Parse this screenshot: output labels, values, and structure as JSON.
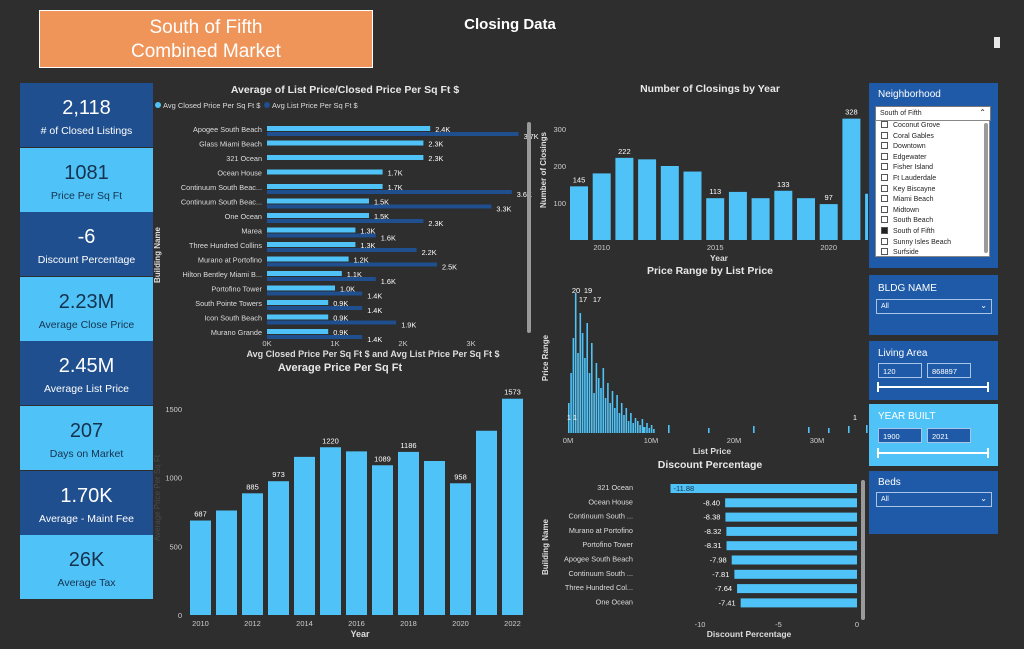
{
  "header": {
    "title_line1": "South of Fifth",
    "title_line2": "Combined Market",
    "page_title": "Closing Data"
  },
  "kpis": [
    {
      "value": "2,118",
      "label": "# of Closed Listings"
    },
    {
      "value": "1081",
      "label": "Price Per Sq Ft"
    },
    {
      "value": "-6",
      "label": "Discount Percentage"
    },
    {
      "value": "2.23M",
      "label": "Average Close Price"
    },
    {
      "value": "2.45M",
      "label": "Average List Price"
    },
    {
      "value": "207",
      "label": "Days on Market"
    },
    {
      "value": "1.70K",
      "label": "Average - Maint Fee"
    },
    {
      "value": "26K",
      "label": "Average Tax"
    }
  ],
  "colors": {
    "closed": "#4fc3f7",
    "list": "#1f4f8f",
    "bg": "#2e2e2e",
    "slicer": "#1e5aa8"
  },
  "chart_data": [
    {
      "type": "bar",
      "orientation": "horizontal",
      "title": "Average of List Price/Closed Price Per Sq Ft $",
      "xlabel": "Avg Closed Price Per Sq Ft $ and Avg List Price Per Sq Ft $",
      "ylabel": "Building Name",
      "categories": [
        "Apogee South Beach",
        "Glass Miami Beach",
        "321 Ocean",
        "Ocean House",
        "Continuum South Beac...",
        "Continuum South Beac...",
        "One Ocean",
        "Marea",
        "Three Hundred Collins",
        "Murano at Portofino",
        "Hilton Bentley Miami B...",
        "Portofino Tower",
        "South Pointe Towers",
        "Icon South Beach",
        "Murano Grande"
      ],
      "series": [
        {
          "name": "Avg Closed Price Per Sq Ft $",
          "values": [
            2.4,
            2.3,
            2.3,
            1.7,
            1.7,
            1.5,
            1.5,
            1.3,
            1.3,
            1.2,
            1.1,
            1.0,
            0.9,
            0.9,
            0.9
          ],
          "labels": [
            "2.4K",
            "2.3K",
            "2.3K",
            "1.7K",
            "1.7K",
            "1.5K",
            "1.5K",
            "1.3K",
            "1.3K",
            "1.2K",
            "1.1K",
            "1.0K",
            "0.9K",
            "0.9K",
            "0.9K"
          ]
        },
        {
          "name": "Avg List Price Per Sq Ft $",
          "values": [
            3.7,
            null,
            null,
            null,
            3.6,
            3.3,
            2.3,
            1.6,
            2.2,
            2.5,
            1.6,
            1.4,
            1.4,
            1.9,
            1.4
          ],
          "labels": [
            "3.7K",
            "",
            "",
            "",
            "3.6K",
            "3.3K",
            "2.3K",
            "1.6K",
            "2.2K",
            "2.5K",
            "1.6K",
            "1.4K",
            "1.4K",
            "1.9K",
            "1.4K"
          ]
        }
      ],
      "xticks": [
        "0K",
        "1K",
        "2K",
        "3K"
      ],
      "xlim": [
        0,
        4
      ],
      "legend": "top-left"
    },
    {
      "type": "bar",
      "title": "Number of Closings by Year",
      "xlabel": "Year",
      "ylabel": "Number of Closings",
      "x": [
        2009,
        2010,
        2011,
        2012,
        2013,
        2014,
        2015,
        2016,
        2017,
        2018,
        2019,
        2020,
        2021,
        2022
      ],
      "values": [
        145,
        180,
        222,
        218,
        200,
        185,
        113,
        130,
        113,
        133,
        113,
        97,
        328,
        125
      ],
      "labels": [
        "145",
        "",
        "222",
        "",
        "",
        "",
        "113",
        "",
        "",
        "133",
        "",
        "97",
        "328",
        "125"
      ],
      "ylim": [
        0,
        340
      ],
      "yticks": [
        100,
        200,
        300
      ],
      "xticks": [
        2010,
        2015,
        2020
      ]
    },
    {
      "type": "bar",
      "title": "Price Range by List Price",
      "xlabel": "List Price",
      "ylabel": "Price Range",
      "xticks": [
        "0M",
        "10M",
        "20M",
        "30M"
      ],
      "xlim": [
        0,
        35
      ],
      "annotations": [
        "20",
        "19",
        "17",
        "17",
        "1",
        "1",
        "1"
      ]
    },
    {
      "type": "bar",
      "title": "Average Price Per Sq Ft",
      "xlabel": "Year",
      "ylabel": "Average Price Per Sq Ft",
      "x": [
        2010,
        2011,
        2012,
        2013,
        2014,
        2015,
        2016,
        2017,
        2018,
        2019,
        2020,
        2021,
        2022
      ],
      "values": [
        687,
        760,
        885,
        973,
        1150,
        1220,
        1190,
        1089,
        1186,
        1120,
        958,
        1340,
        1573
      ],
      "labels": [
        "687",
        "",
        "885",
        "973",
        "",
        "1220",
        "",
        "1089",
        "1186",
        "",
        "958",
        "",
        "1573"
      ],
      "ylim": [
        0,
        1600
      ],
      "yticks": [
        0,
        500,
        1000,
        1500
      ],
      "xticks": [
        2010,
        2012,
        2014,
        2016,
        2018,
        2020,
        2022
      ]
    },
    {
      "type": "bar",
      "orientation": "horizontal",
      "title": "Discount Percentage",
      "xlabel": "Discount Percentage",
      "ylabel": "Building Name",
      "categories": [
        "321 Ocean",
        "Ocean House",
        "Continuum South ...",
        "Murano at Portofino",
        "Portofino Tower",
        "Apogee South Beach",
        "Continuum South ...",
        "Three Hundred Col...",
        "One Ocean"
      ],
      "values": [
        -11.88,
        -8.4,
        -8.38,
        -8.32,
        -8.31,
        -7.98,
        -7.81,
        -7.64,
        -7.41
      ],
      "labels": [
        "-11.88",
        "-8.40",
        "-8.38",
        "-8.32",
        "-8.31",
        "-7.98",
        "-7.81",
        "-7.64",
        "-7.41"
      ],
      "xlim": [
        -12,
        0
      ],
      "xticks": [
        "-10",
        "-5",
        "0"
      ]
    }
  ],
  "slicers": {
    "neighborhood": {
      "title": "Neighborhood",
      "selected": "South of Fifth",
      "options": [
        "Coconut Grove",
        "Coral Gables",
        "Downtown",
        "Edgewater",
        "Fisher Island",
        "Ft Lauderdale",
        "Key Biscayne",
        "Miami Beach",
        "Midtown",
        "South Beach",
        "South of Fifth",
        "Sunny Isles Beach",
        "Surfside"
      ],
      "checked": "South of Fifth"
    },
    "bldg": {
      "title": "BLDG NAME",
      "value": "All"
    },
    "living": {
      "title": "Living Area",
      "min": "120",
      "max": "868897"
    },
    "year": {
      "title": "YEAR BUILT",
      "min": "1900",
      "max": "2021"
    },
    "beds": {
      "title": "Beds",
      "value": "All"
    }
  }
}
